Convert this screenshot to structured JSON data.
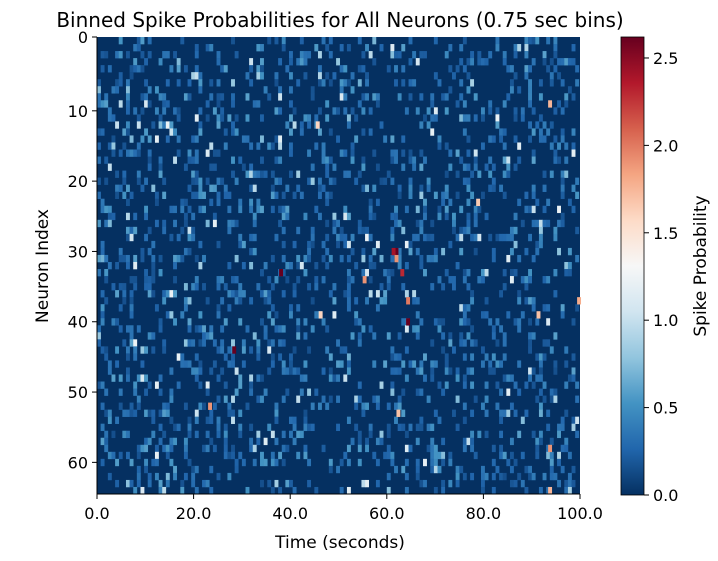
{
  "chart_data": {
    "type": "heatmap",
    "title": "Binned Spike Probabilities for All Neurons (0.75 sec bins)",
    "xlabel": "Time (seconds)",
    "ylabel": "Neuron Index",
    "xlim": [
      0,
      100
    ],
    "ylim": [
      65,
      0
    ],
    "xticks": [
      0,
      20,
      40,
      60,
      80,
      100
    ],
    "xtick_labels": [
      "0.0",
      "20.0",
      "40.0",
      "60.0",
      "80.0",
      "100.0"
    ],
    "yticks": [
      0,
      10,
      20,
      30,
      40,
      50,
      60
    ],
    "ytick_labels": [
      "0",
      "10",
      "20",
      "30",
      "40",
      "50",
      "60"
    ],
    "n_neurons": 65,
    "bin_seconds": 0.75,
    "n_bins": 133,
    "colormap": "RdBu_r",
    "colorbar": {
      "label": "Spike Probability",
      "range": [
        0,
        2.62
      ],
      "ticks": [
        0.0,
        0.5,
        1.0,
        1.5,
        2.0,
        2.5
      ],
      "tick_labels": [
        "0.0",
        "0.5",
        "1.0",
        "1.5",
        "2.0",
        "2.5"
      ]
    },
    "background_value": 0.0,
    "notable_cells": [
      {
        "neuron": 9,
        "time": 93.4,
        "value": 1.75
      },
      {
        "neuron": 12,
        "time": 45.3,
        "value": 1.6
      },
      {
        "neuron": 23,
        "time": 78.5,
        "value": 1.65
      },
      {
        "neuron": 30,
        "time": 61.6,
        "value": 2.62
      },
      {
        "neuron": 30,
        "time": 61.0,
        "value": 2.4
      },
      {
        "neuron": 31,
        "time": 61.6,
        "value": 1.9
      },
      {
        "neuron": 33,
        "time": 37.7,
        "value": 2.62
      },
      {
        "neuron": 33,
        "time": 62.8,
        "value": 2.3
      },
      {
        "neuron": 34,
        "time": 55.0,
        "value": 1.9
      },
      {
        "neuron": 37,
        "time": 64.0,
        "value": 2.0
      },
      {
        "neuron": 37,
        "time": 99.4,
        "value": 1.8
      },
      {
        "neuron": 39,
        "time": 45.9,
        "value": 1.6
      },
      {
        "neuron": 39,
        "time": 91.0,
        "value": 1.7
      },
      {
        "neuron": 40,
        "time": 64.0,
        "value": 2.62
      },
      {
        "neuron": 44,
        "time": 28.0,
        "value": 2.62
      },
      {
        "neuron": 52,
        "time": 23.0,
        "value": 1.9
      },
      {
        "neuron": 53,
        "time": 62.0,
        "value": 1.7
      },
      {
        "neuron": 58,
        "time": 93.4,
        "value": 1.9
      },
      {
        "neuron": 64,
        "time": 93.4,
        "value": 1.75
      }
    ]
  }
}
